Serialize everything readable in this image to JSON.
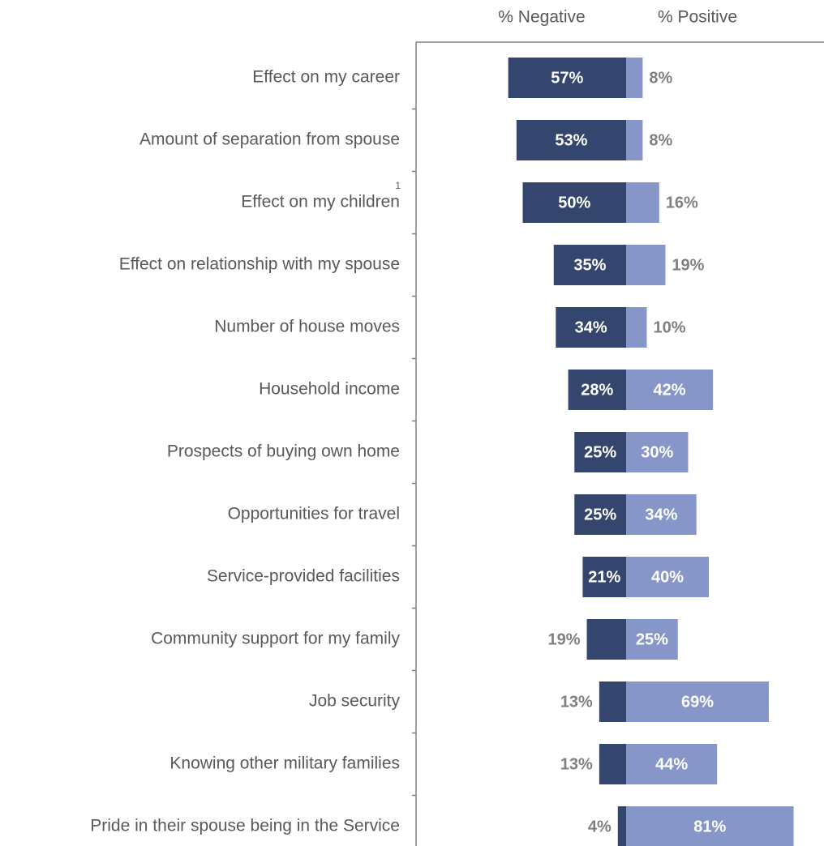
{
  "chart_data": {
    "type": "diverging_bar",
    "categories": [
      "Effect on my career",
      "Amount of separation from spouse",
      "Effect on my children",
      "Effect on relationship with my spouse",
      "Number of house moves",
      "Household income",
      "Prospects of buying own home",
      "Opportunities for travel",
      "Service-provided facilities",
      "Community support for my family",
      "Job security",
      "Knowing other military families",
      "Pride in their spouse being in the Service"
    ],
    "footnote_marks": [
      null,
      null,
      "1",
      null,
      null,
      null,
      null,
      null,
      null,
      null,
      null,
      null,
      null
    ],
    "series": [
      {
        "name": "% Negative",
        "color": "#34466e",
        "direction": "left",
        "values": [
          57,
          53,
          50,
          35,
          34,
          28,
          25,
          25,
          21,
          19,
          13,
          13,
          4
        ],
        "value_labels": [
          "57%",
          "53%",
          "50%",
          "35%",
          "34%",
          "28%",
          "25%",
          "25%",
          "21%",
          "19%",
          "13%",
          "13%",
          "4%"
        ]
      },
      {
        "name": "% Positive",
        "color": "#8796c8",
        "direction": "right",
        "values": [
          8,
          8,
          16,
          19,
          10,
          42,
          30,
          34,
          40,
          25,
          69,
          44,
          81
        ],
        "value_labels": [
          "8%",
          "8%",
          "16%",
          "19%",
          "10%",
          "42%",
          "30%",
          "34%",
          "40%",
          "25%",
          "69%",
          "44%",
          "81%"
        ]
      }
    ]
  }
}
